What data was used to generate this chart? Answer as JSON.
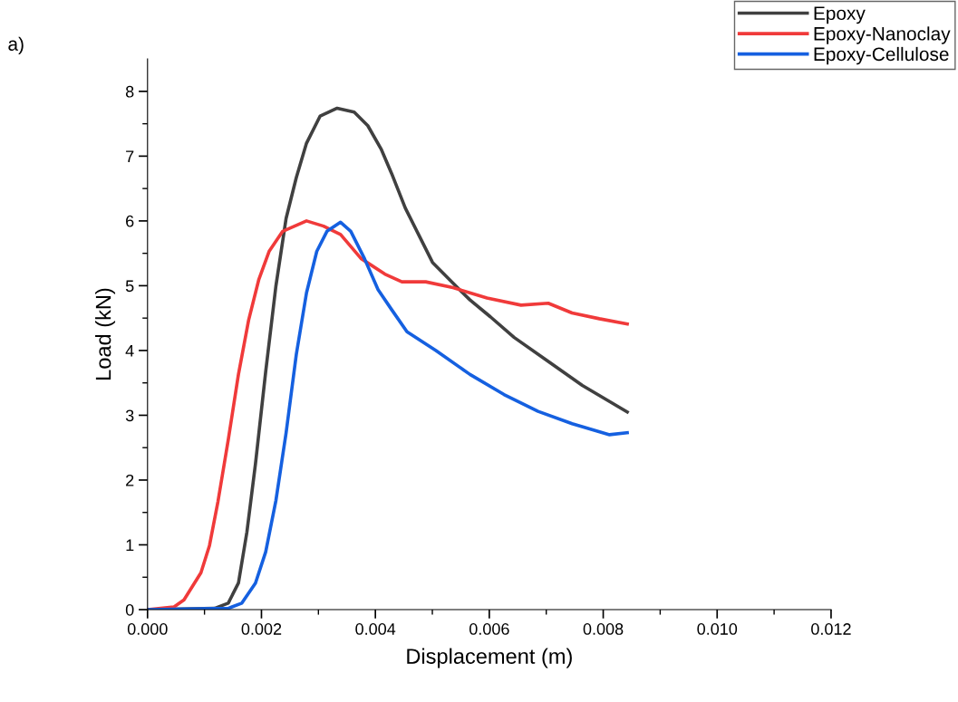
{
  "chart_data": {
    "type": "line",
    "xlabel": "Displacement (m)",
    "ylabel": "Load (kN)",
    "annotations": [
      "a)"
    ],
    "xlim": [
      0,
      0.012
    ],
    "ylim": [
      0,
      8.5
    ],
    "xticks": [
      {
        "value": 0,
        "label": "0.000"
      },
      {
        "value": 0.001,
        "label": null
      },
      {
        "value": 0.002,
        "label": "0.002"
      },
      {
        "value": 0.003,
        "label": null
      },
      {
        "value": 0.004,
        "label": "0.004"
      },
      {
        "value": 0.005,
        "label": null
      },
      {
        "value": 0.006,
        "label": "0.006"
      },
      {
        "value": 0.007,
        "label": null
      },
      {
        "value": 0.008,
        "label": "0.008"
      },
      {
        "value": 0.009,
        "label": null
      },
      {
        "value": 0.01,
        "label": "0.010"
      },
      {
        "value": 0.011,
        "label": null
      },
      {
        "value": 0.012,
        "label": "0.012"
      }
    ],
    "yticks": [
      0,
      {
        "value": 0.5,
        "label": null
      },
      1,
      {
        "value": 1.5,
        "label": null
      },
      2,
      {
        "value": 2.5,
        "label": null
      },
      3,
      {
        "value": 3.5,
        "label": null
      },
      4,
      {
        "value": 4.5,
        "label": null
      },
      5,
      {
        "value": 5.5,
        "label": null
      },
      6,
      {
        "value": 6.5,
        "label": null
      },
      7,
      {
        "value": 7.5,
        "label": null
      },
      8
    ],
    "grid": false,
    "legend": "top right",
    "marker": "none",
    "line_style": "solid",
    "series": [
      {
        "name": "Epoxy",
        "color": "#404040",
        "x": [
          0,
          0.001178,
          0.001417,
          0.001596,
          0.001745,
          0.001895,
          0.002074,
          0.002253,
          0.002433,
          0.002612,
          0.002791,
          0.003031,
          0.003329,
          0.003628,
          0.003867,
          0.004106,
          0.004286,
          0.004525,
          0.004764,
          0.005003,
          0.005362,
          0.005661,
          0.006019,
          0.006438,
          0.007035,
          0.007633,
          0.008422
        ],
        "values": [
          0,
          0.02,
          0.1,
          0.41,
          1.2,
          2.25,
          3.67,
          4.99,
          6.04,
          6.67,
          7.2,
          7.62,
          7.74,
          7.68,
          7.47,
          7.1,
          6.73,
          6.2,
          5.78,
          5.36,
          5.04,
          4.78,
          4.52,
          4.2,
          3.83,
          3.46,
          3.05
        ]
      },
      {
        "name": "Epoxy-Nanoclay",
        "color": "#f03a3a",
        "x": [
          0,
          0.00046,
          0.00064,
          0.000938,
          0.001088,
          0.001237,
          0.001417,
          0.001596,
          0.001775,
          0.001955,
          0.002134,
          0.002373,
          0.002791,
          0.00309,
          0.003389,
          0.003748,
          0.004166,
          0.004465,
          0.004883,
          0.005362,
          0.00596,
          0.006557,
          0.007035,
          0.007453,
          0.007932,
          0.008422
        ],
        "values": [
          0,
          0.04,
          0.15,
          0.57,
          0.99,
          1.67,
          2.62,
          3.63,
          4.47,
          5.1,
          5.53,
          5.84,
          6.0,
          5.92,
          5.79,
          5.42,
          5.18,
          5.06,
          5.06,
          4.97,
          4.81,
          4.7,
          4.73,
          4.58,
          4.49,
          4.41
        ]
      },
      {
        "name": "Epoxy-Cellulose",
        "color": "#1560e0",
        "x": [
          0,
          0.001417,
          0.001656,
          0.001895,
          0.002074,
          0.002253,
          0.002433,
          0.002612,
          0.002791,
          0.002971,
          0.00315,
          0.003389,
          0.003568,
          0.003808,
          0.004047,
          0.004286,
          0.004555,
          0.005063,
          0.005661,
          0.006258,
          0.006856,
          0.007454,
          0.008111,
          0.008422
        ],
        "values": [
          0,
          0.02,
          0.1,
          0.41,
          0.89,
          1.68,
          2.73,
          3.94,
          4.89,
          5.53,
          5.84,
          5.98,
          5.84,
          5.42,
          4.94,
          4.63,
          4.29,
          4.0,
          3.63,
          3.32,
          3.06,
          2.87,
          2.7,
          2.73
        ]
      }
    ]
  }
}
